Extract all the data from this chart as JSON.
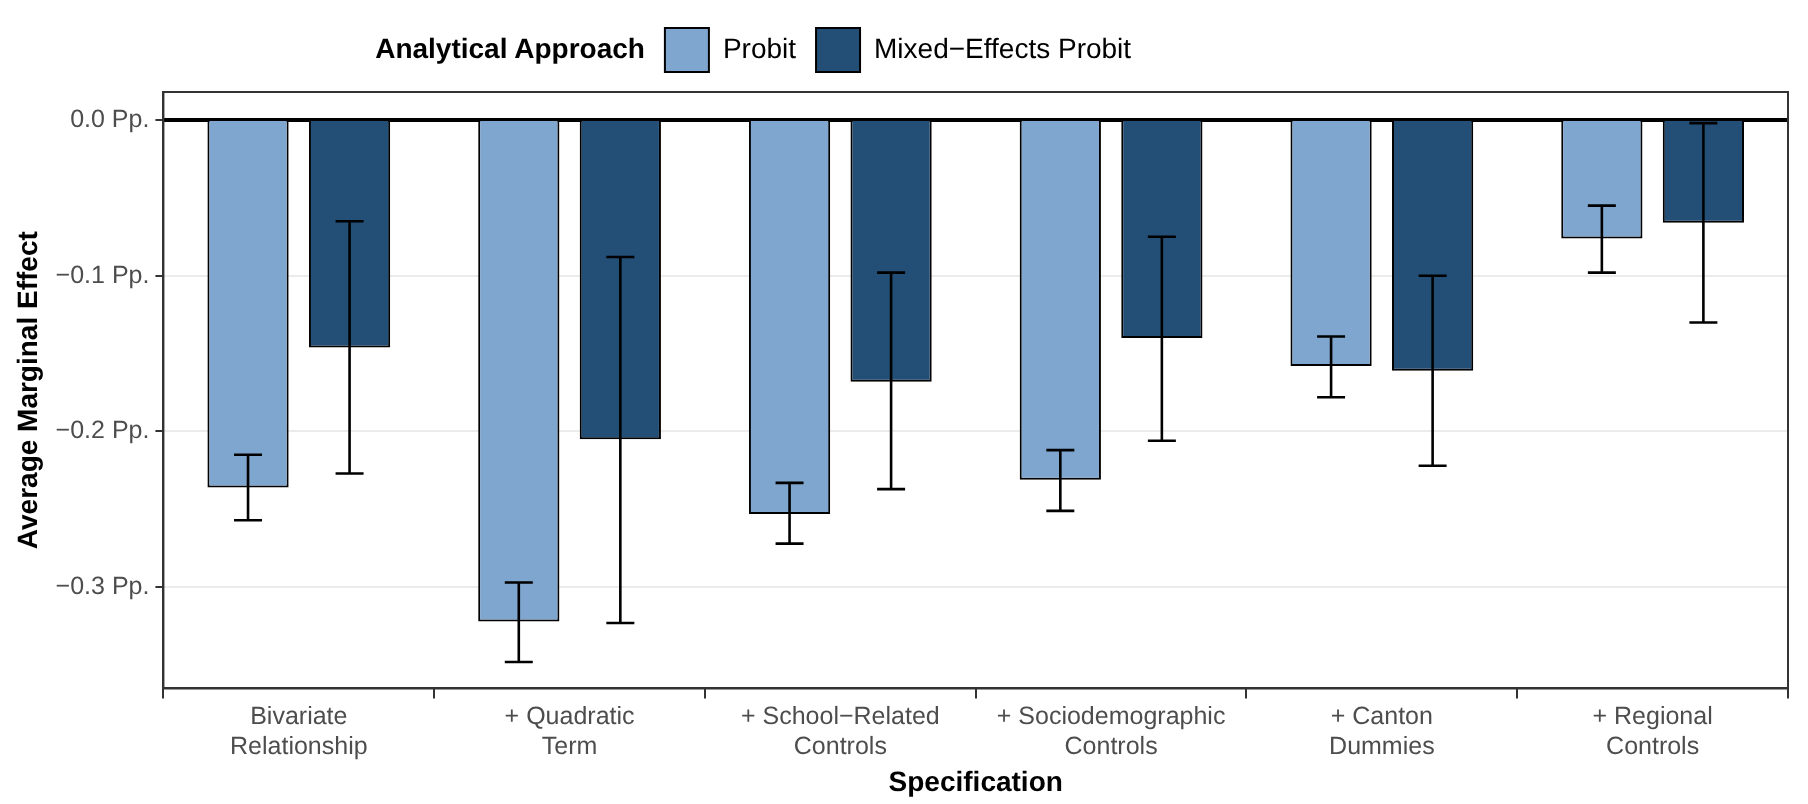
{
  "chart_data": {
    "type": "bar",
    "xlabel": "Specification",
    "ylabel": "Average Marginal Effect",
    "legend_title": "Analytical Approach",
    "legend": "top",
    "categories": [
      "Bivariate\nRelationship",
      "+ Quadratic\nTerm",
      "+ School−Related\nControls",
      "+ Sociodemographic\nControls",
      "+ Canton\nDummies",
      "+ Regional\nControls"
    ],
    "series": [
      {
        "name": "Probit",
        "color": "#7fa6cf",
        "values": [
          -0.236,
          -0.322,
          -0.253,
          -0.231,
          -0.158,
          -0.076
        ],
        "errors": [
          [
            -0.257,
            -0.215
          ],
          [
            -0.348,
            -0.297
          ],
          [
            -0.272,
            -0.233
          ],
          [
            -0.251,
            -0.212
          ],
          [
            -0.178,
            -0.139
          ],
          [
            -0.098,
            -0.055
          ]
        ]
      },
      {
        "name": "Mixed−Effects Probit",
        "color": "#234e75",
        "values": [
          -0.146,
          -0.205,
          -0.168,
          -0.14,
          -0.161,
          -0.066
        ],
        "errors": [
          [
            -0.227,
            -0.065
          ],
          [
            -0.323,
            -0.088
          ],
          [
            -0.237,
            -0.098
          ],
          [
            -0.206,
            -0.075
          ],
          [
            -0.222,
            -0.1
          ],
          [
            -0.13,
            -0.002
          ]
        ]
      }
    ],
    "ylim": [
      -0.365,
      0.018
    ],
    "yticks": [
      {
        "value": 0,
        "label": "0.0 Pp."
      },
      {
        "value": -0.1,
        "label": "−0.1 Pp."
      },
      {
        "value": -0.2,
        "label": "−0.2 Pp."
      },
      {
        "value": -0.3,
        "label": "−0.3 Pp."
      }
    ],
    "ref_lines": [
      {
        "axis": "y",
        "value": 0,
        "color": "#000000"
      }
    ],
    "grid": "y"
  }
}
